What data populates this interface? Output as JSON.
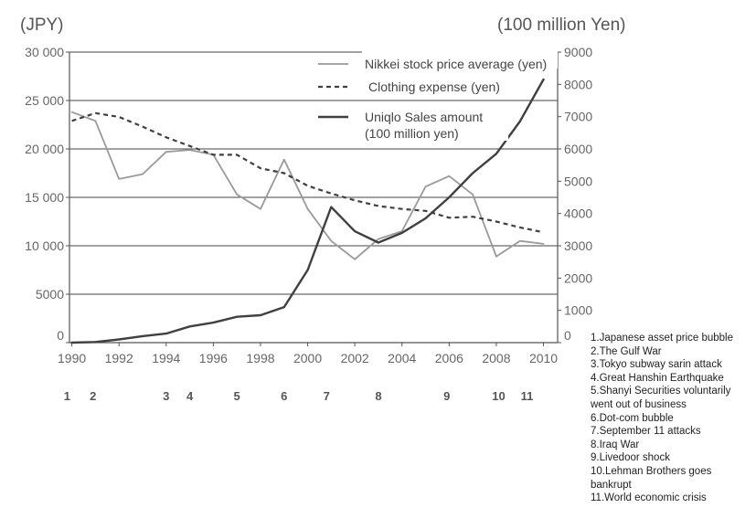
{
  "chart_data": {
    "type": "line",
    "left_axis_label": "(JPY)",
    "right_axis_label": "(100 million Yen)",
    "x": [
      1990,
      1991,
      1992,
      1993,
      1994,
      1995,
      1996,
      1997,
      1998,
      1999,
      2000,
      2001,
      2002,
      2003,
      2004,
      2005,
      2006,
      2007,
      2008,
      2009,
      2010
    ],
    "x_tick_labels": [
      "1990",
      "1992",
      "1994",
      "1996",
      "1998",
      "2000",
      "2002",
      "2004",
      "2006",
      "2008",
      "2010"
    ],
    "x_tick_values": [
      1990,
      1992,
      1994,
      1996,
      1998,
      2000,
      2002,
      2004,
      2006,
      2008,
      2010
    ],
    "xlim": [
      1989.9,
      2010.6
    ],
    "ylim_left": [
      0,
      30000
    ],
    "ylim_right": [
      0,
      9000
    ],
    "left_ticks": [
      0,
      5000,
      10000,
      15000,
      20000,
      25000,
      30000
    ],
    "left_tick_labels": [
      "0",
      "5000",
      "10 000",
      "15 000",
      "20 000",
      "25 000",
      "30 000"
    ],
    "right_ticks": [
      0,
      1000,
      2000,
      3000,
      4000,
      5000,
      6000,
      7000,
      8000,
      9000
    ],
    "right_tick_labels": [
      "0",
      "1000",
      "2000",
      "3000",
      "4000",
      "5000",
      "6000",
      "7000",
      "8000",
      "9000"
    ],
    "series": [
      {
        "name": "Nikkei stock price average (yen)",
        "axis": "left",
        "style": "solid-gray",
        "values": [
          23800,
          22900,
          16900,
          17400,
          19700,
          19900,
          19400,
          15300,
          13800,
          18900,
          13800,
          10500,
          8600,
          10700,
          11500,
          16100,
          17200,
          15300,
          8900,
          10500,
          10200
        ]
      },
      {
        "name": "Clothing expense (yen)",
        "axis": "left",
        "style": "dashed",
        "values": [
          22900,
          23700,
          23300,
          22300,
          21200,
          20300,
          19400,
          19400,
          18000,
          17500,
          16200,
          15400,
          14700,
          14100,
          13800,
          13600,
          12900,
          13000,
          12500,
          11900,
          11400
        ]
      },
      {
        "name": "Uniqlo Sales amount (100 million yen)",
        "axis": "right",
        "style": "solid-dark",
        "values": [
          0,
          20,
          100,
          200,
          280,
          500,
          620,
          800,
          850,
          1100,
          2250,
          4200,
          3450,
          3100,
          3400,
          3850,
          4500,
          5250,
          5850,
          6850,
          8150
        ]
      }
    ],
    "legend": [
      {
        "label": "Nikkei stock price average (yen)",
        "style": "solid-gray"
      },
      {
        "label": "Clothing expense (yen)",
        "style": "dashed"
      },
      {
        "label": "Uniqlo Sales amount",
        "label2": "(100 million yen)",
        "style": "solid-dark"
      }
    ],
    "events": [
      {
        "num": "1",
        "year": 1989.8
      },
      {
        "num": "2",
        "year": 1990.9
      },
      {
        "num": "3",
        "year": 1994.0
      },
      {
        "num": "4",
        "year": 1995.0
      },
      {
        "num": "5",
        "year": 1997.0
      },
      {
        "num": "6",
        "year": 1999.0
      },
      {
        "num": "7",
        "year": 2000.8
      },
      {
        "num": "8",
        "year": 2003.0
      },
      {
        "num": "9",
        "year": 2005.9
      },
      {
        "num": "10",
        "year": 2008.1
      },
      {
        "num": "11",
        "year": 2009.3
      }
    ],
    "colors": {
      "nikkei": "#9a9a9a",
      "clothing": "#404040",
      "uniqlo": "#404040",
      "grid": "#444444",
      "axis": "#555555"
    }
  },
  "notes": [
    "1.Japanese asset price bubble",
    "2.The Gulf War",
    "3.Tokyo subway sarin attack",
    "4.Great Hanshin Earthquake",
    "5.Shanyi Securities voluntarily went out of business",
    "6.Dot-com bubble",
    "7.September 11 attacks",
    "8.Iraq War",
    "9.Livedoor shock",
    "10.Lehman Brothers goes bankrupt",
    "11.World economic crisis"
  ]
}
